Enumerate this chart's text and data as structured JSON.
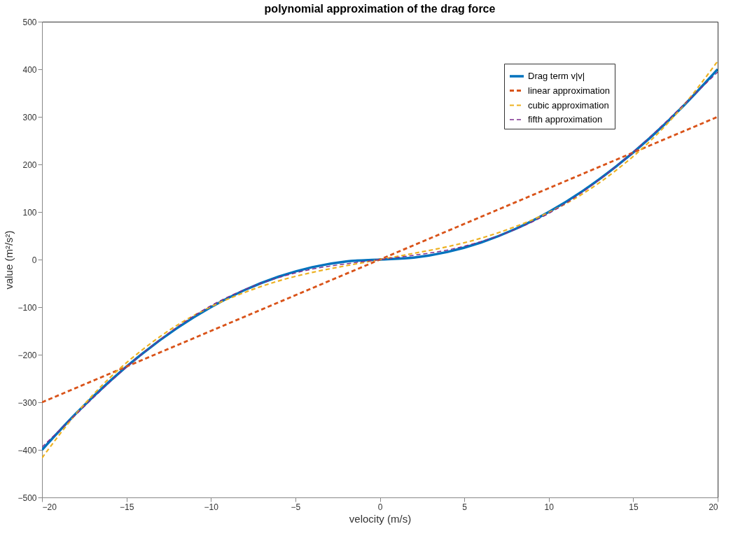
{
  "chart_data": {
    "type": "line",
    "title": "polynomial approximation of the drag force",
    "xlabel": "velocity (m/s)",
    "ylabel": "value (m²/s²)",
    "x": [
      -20,
      -18,
      -16,
      -14,
      -12,
      -10,
      -8,
      -6,
      -4,
      -2,
      0,
      2,
      4,
      6,
      8,
      10,
      12,
      14,
      16,
      18,
      20
    ],
    "series": [
      {
        "name": "Drag term v|v|",
        "color": "#0072bd",
        "line_style": "solid",
        "values": [
          -400,
          -324,
          -256,
          -196,
          -144,
          -100,
          -64,
          -36,
          -16,
          -4,
          0,
          4,
          16,
          36,
          64,
          100,
          144,
          196,
          256,
          324,
          400
        ]
      },
      {
        "name": "linear approximation",
        "color": "#d95319",
        "line_style": "dashed",
        "values": [
          -300,
          -270,
          -240,
          -210,
          -180,
          -150,
          -120,
          -90,
          -60,
          -30,
          0,
          30,
          60,
          90,
          120,
          150,
          180,
          210,
          240,
          270,
          300
        ]
      },
      {
        "name": "cubic approximation",
        "color": "#edb120",
        "line_style": "dashed",
        "values": [
          -417,
          -325,
          -249,
          -188,
          -138,
          -99,
          -69,
          -45,
          -27,
          -13,
          0,
          13,
          27,
          45,
          69,
          99,
          138,
          188,
          249,
          325,
          417
        ]
      },
      {
        "name": "fifth approximation",
        "color": "#7e2f8e",
        "line_style": "dashed",
        "values": [
          -394,
          -326,
          -258,
          -196,
          -142,
          -97,
          -63,
          -38,
          -20,
          -9,
          0,
          9,
          20,
          38,
          63,
          97,
          142,
          196,
          258,
          326,
          394
        ]
      }
    ],
    "xlim": [
      -20,
      20
    ],
    "xticks": [
      -20,
      -15,
      -10,
      -5,
      0,
      5,
      10,
      15,
      20
    ],
    "ylim": [
      -500,
      500
    ],
    "yticks": [
      -500,
      -400,
      -300,
      -200,
      -100,
      0,
      100,
      200,
      300,
      400,
      500
    ],
    "grid": false,
    "legend": "top right"
  }
}
